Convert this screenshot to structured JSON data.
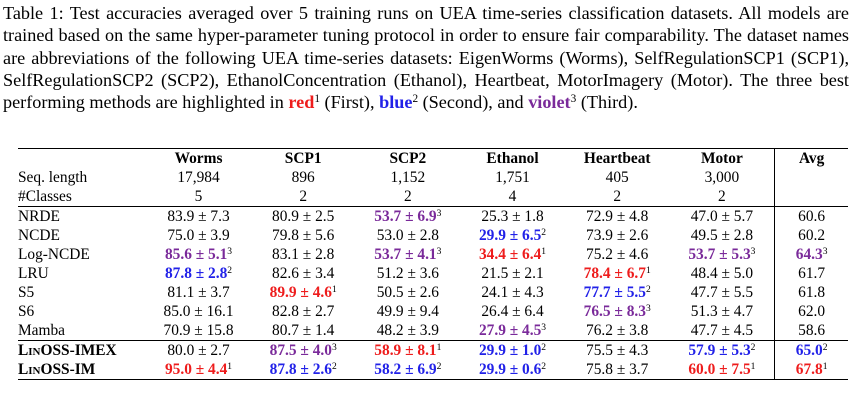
{
  "caption": {
    "text": "Table 1: Test accuracies averaged over 5 training runs on UEA time-series classification datasets. All models are trained based on the same hyper-parameter tuning protocol in order to ensure fair comparability. The dataset names are abbreviations of the following UEA time-series datasets: EigenWorms (Worms), SelfRegulationSCP1 (SCP1), SelfRegulationSCP2 (SCP2), EthanolConcentration (Ethanol), Heartbeat, MotorImagery (Motor). The three best performing methods are highlighted in",
    "legend": [
      {
        "word": "red",
        "rank": "1",
        "label": "(First),",
        "color": "red"
      },
      {
        "word": "blue",
        "rank": "2",
        "label": "(Second), and",
        "color": "blue"
      },
      {
        "word": "violet",
        "rank": "3",
        "label": "(Third).",
        "color": "violet"
      }
    ]
  },
  "columns": [
    "Worms",
    "SCP1",
    "SCP2",
    "Ethanol",
    "Heartbeat",
    "Motor",
    "Avg"
  ],
  "meta_rows": [
    {
      "label": "Seq. length",
      "values": [
        "17,984",
        "896",
        "1,152",
        "1,751",
        "405",
        "3,000",
        ""
      ]
    },
    {
      "label": "#Classes",
      "values": [
        "5",
        "2",
        "2",
        "4",
        "2",
        "2",
        ""
      ]
    }
  ],
  "models": [
    {
      "name": "NRDE",
      "cells": [
        {
          "v": "83.9 ± 7.3"
        },
        {
          "v": "80.9 ± 2.5"
        },
        {
          "v": "53.7 ± 6.9",
          "r": "3"
        },
        {
          "v": "25.3 ± 1.8"
        },
        {
          "v": "72.9 ± 4.8"
        },
        {
          "v": "47.0 ± 5.7"
        },
        {
          "v": "60.6"
        }
      ]
    },
    {
      "name": "NCDE",
      "cells": [
        {
          "v": "75.0 ± 3.9"
        },
        {
          "v": "79.8 ± 5.6"
        },
        {
          "v": "53.0 ± 2.8"
        },
        {
          "v": "29.9 ± 6.5",
          "r": "2"
        },
        {
          "v": "73.9 ± 2.6"
        },
        {
          "v": "49.5 ± 2.8"
        },
        {
          "v": "60.2"
        }
      ]
    },
    {
      "name": "Log-NCDE",
      "cells": [
        {
          "v": "85.6 ± 5.1",
          "r": "3"
        },
        {
          "v": "83.1 ± 2.8"
        },
        {
          "v": "53.7 ± 4.1",
          "r": "3"
        },
        {
          "v": "34.4 ± 6.4",
          "r": "1"
        },
        {
          "v": "75.2 ± 4.6"
        },
        {
          "v": "53.7 ± 5.3",
          "r": "3"
        },
        {
          "v": "64.3",
          "r": "3"
        }
      ]
    },
    {
      "name": "LRU",
      "cells": [
        {
          "v": "87.8 ± 2.8",
          "r": "2"
        },
        {
          "v": "82.6 ± 3.4"
        },
        {
          "v": "51.2 ± 3.6"
        },
        {
          "v": "21.5 ± 2.1"
        },
        {
          "v": "78.4 ± 6.7",
          "r": "1"
        },
        {
          "v": "48.4 ± 5.0"
        },
        {
          "v": "61.7"
        }
      ]
    },
    {
      "name": "S5",
      "cells": [
        {
          "v": "81.1 ± 3.7"
        },
        {
          "v": "89.9 ± 4.6",
          "r": "1"
        },
        {
          "v": "50.5 ± 2.6"
        },
        {
          "v": "24.1 ± 4.3"
        },
        {
          "v": "77.7 ± 5.5",
          "r": "2"
        },
        {
          "v": "47.7 ± 5.5"
        },
        {
          "v": "61.8"
        }
      ]
    },
    {
      "name": "S6",
      "cells": [
        {
          "v": "85.0 ± 16.1"
        },
        {
          "v": "82.8 ± 2.7"
        },
        {
          "v": "49.9 ± 9.4"
        },
        {
          "v": "26.4 ± 6.4"
        },
        {
          "v": "76.5 ± 8.3",
          "r": "3"
        },
        {
          "v": "51.3 ± 4.7"
        },
        {
          "v": "62.0"
        }
      ]
    },
    {
      "name": "Mamba",
      "cells": [
        {
          "v": "70.9 ± 15.8"
        },
        {
          "v": "80.7 ± 1.4"
        },
        {
          "v": "48.2 ± 3.9"
        },
        {
          "v": "27.9 ± 4.5",
          "r": "3"
        },
        {
          "v": "76.2 ± 3.8"
        },
        {
          "v": "47.7 ± 4.5"
        },
        {
          "v": "58.6"
        }
      ]
    },
    {
      "name": "LinOSS-IMEX",
      "ours": true,
      "cells": [
        {
          "v": "80.0 ± 2.7"
        },
        {
          "v": "87.5 ± 4.0",
          "r": "3"
        },
        {
          "v": "58.9 ± 8.1",
          "r": "1"
        },
        {
          "v": "29.9 ± 1.0",
          "r": "2"
        },
        {
          "v": "75.5 ± 4.3"
        },
        {
          "v": "57.9 ± 5.3",
          "r": "2"
        },
        {
          "v": "65.0",
          "r": "2"
        }
      ]
    },
    {
      "name": "LinOSS-IM",
      "ours": true,
      "cells": [
        {
          "v": "95.0 ± 4.4",
          "r": "1"
        },
        {
          "v": "87.8 ± 2.6",
          "r": "2"
        },
        {
          "v": "58.2 ± 6.9",
          "r": "2"
        },
        {
          "v": "29.9 ± 0.6",
          "r": "2"
        },
        {
          "v": "75.8 ± 3.7"
        },
        {
          "v": "60.0 ± 7.5",
          "r": "1"
        },
        {
          "v": "67.8",
          "r": "1"
        }
      ]
    }
  ],
  "colors": {
    "red": "#ee1c1c",
    "blue": "#2121e8",
    "violet": "#7a2a9a"
  }
}
